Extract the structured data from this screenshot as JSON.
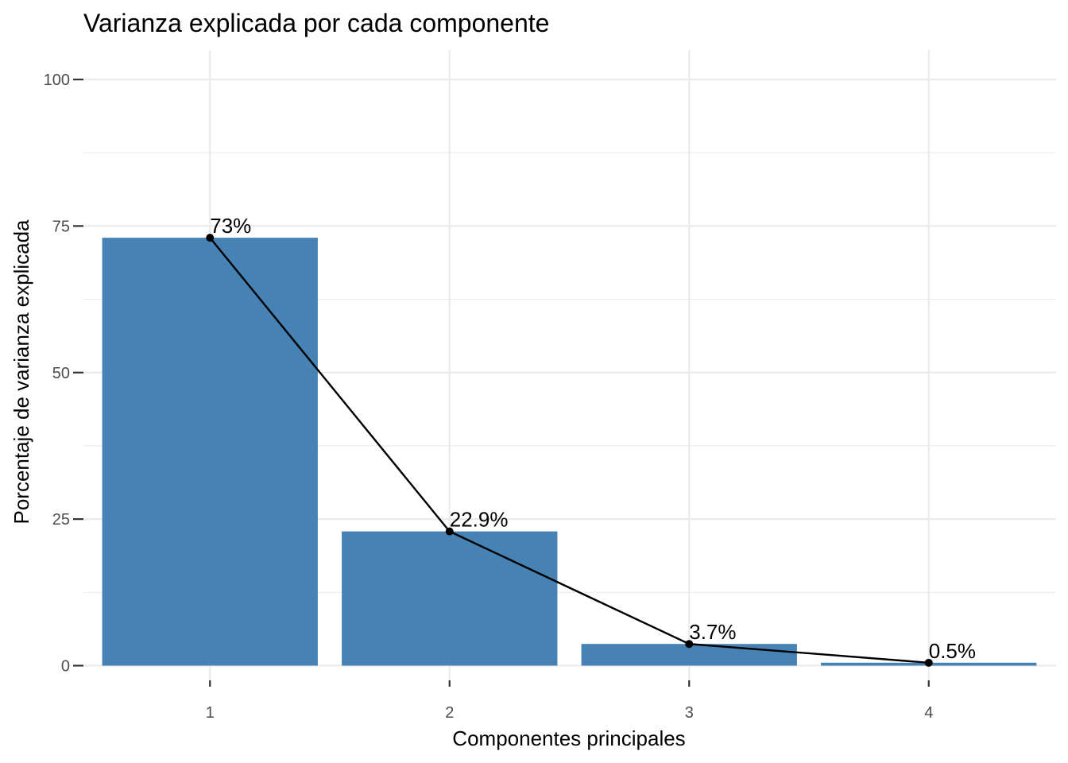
{
  "chart_data": {
    "type": "bar",
    "title": "Varianza explicada por cada componente",
    "xlabel": "Componentes principales",
    "ylabel": "Porcentaje de varianza explicada",
    "categories": [
      "1",
      "2",
      "3",
      "4"
    ],
    "values": [
      73,
      22.9,
      3.7,
      0.5
    ],
    "value_labels": [
      "73%",
      "22.9%",
      "3.7%",
      "0.5%"
    ],
    "yticks": [
      0,
      25,
      50,
      75,
      100
    ],
    "ylim": [
      0,
      100
    ],
    "grid": true,
    "line_overlay": true,
    "bar_color": "#4682B4",
    "line_color": "#000000"
  }
}
